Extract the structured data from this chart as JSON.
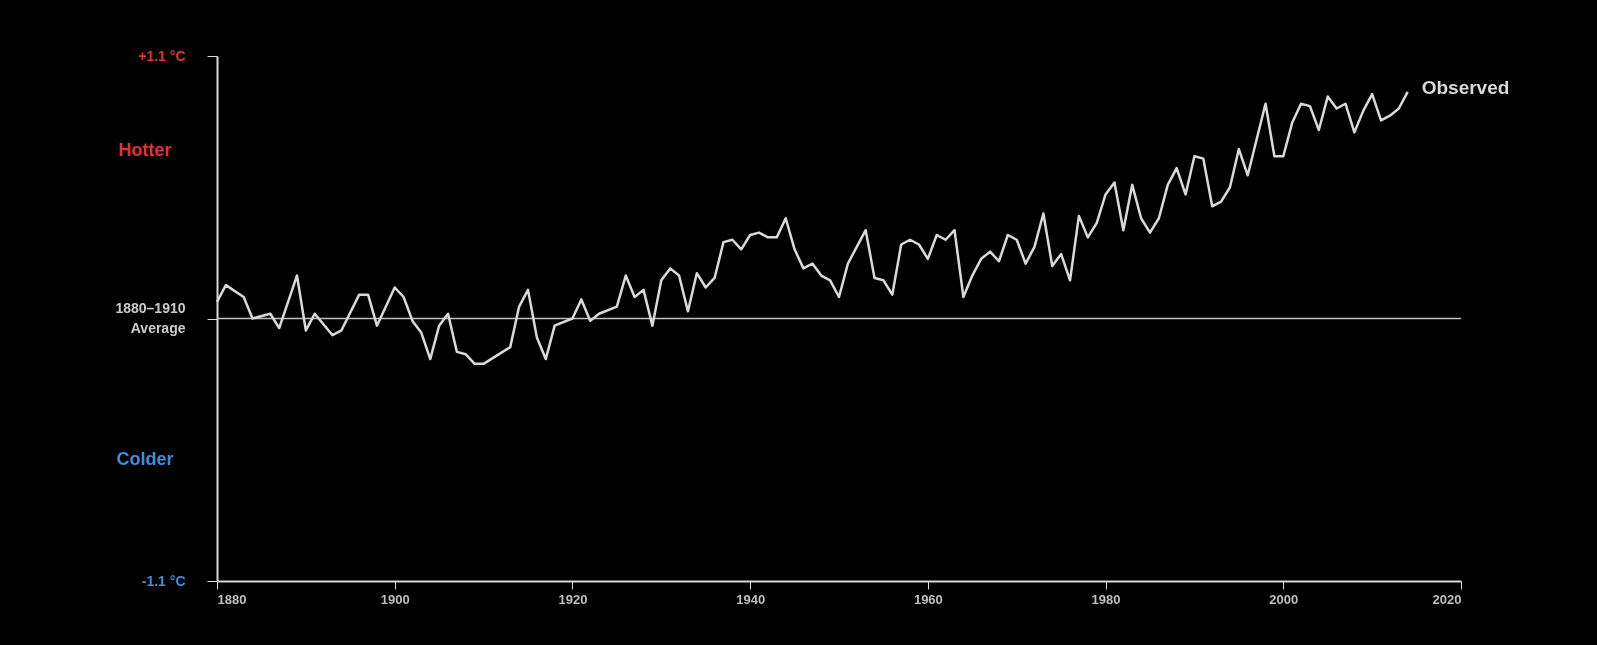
{
  "chart_data": {
    "type": "line",
    "x": [
      1880,
      1881,
      1883,
      1884,
      1886,
      1887,
      1889,
      1890,
      1891,
      1893,
      1894,
      1896,
      1897,
      1898,
      1900,
      1901,
      1902,
      1903,
      1904,
      1905,
      1906,
      1907,
      1908,
      1909,
      1910,
      1913,
      1914,
      1915,
      1916,
      1917,
      1918,
      1920,
      1921,
      1922,
      1923,
      1925,
      1926,
      1927,
      1928,
      1929,
      1930,
      1931,
      1932,
      1933,
      1934,
      1935,
      1936,
      1937,
      1938,
      1939,
      1940,
      1941,
      1942,
      1943,
      1944,
      1945,
      1946,
      1947,
      1948,
      1949,
      1950,
      1951,
      1952,
      1953,
      1954,
      1955,
      1956,
      1957,
      1958,
      1959,
      1960,
      1961,
      1962,
      1963,
      1964,
      1965,
      1966,
      1967,
      1968,
      1969,
      1970,
      1971,
      1972,
      1973,
      1974,
      1975,
      1976,
      1977,
      1978,
      1979,
      1980,
      1981,
      1982,
      1983,
      1984,
      1985,
      1986,
      1987,
      1988,
      1989,
      1990,
      1991,
      1992,
      1993,
      1994,
      1995,
      1996,
      1997,
      1998,
      1999,
      2000,
      2001,
      2002,
      2003,
      2004,
      2005,
      2006,
      2007,
      2008,
      2009,
      2010,
      2011,
      2012,
      2013,
      2014
    ],
    "series": [
      {
        "name": "Observed",
        "color": "#d9d9d9",
        "values": [
          0.07,
          0.14,
          0.09,
          0.0,
          0.02,
          -0.04,
          0.18,
          -0.05,
          0.02,
          -0.07,
          -0.05,
          0.1,
          0.1,
          -0.03,
          0.13,
          0.09,
          -0.01,
          -0.06,
          -0.17,
          -0.03,
          0.02,
          -0.14,
          -0.15,
          -0.19,
          -0.19,
          -0.12,
          0.05,
          0.12,
          -0.08,
          -0.17,
          -0.03,
          0.0,
          0.08,
          -0.01,
          0.02,
          0.05,
          0.18,
          0.09,
          0.12,
          -0.03,
          0.16,
          0.21,
          0.18,
          0.03,
          0.19,
          0.13,
          0.17,
          0.32,
          0.33,
          0.29,
          0.35,
          0.36,
          0.34,
          0.34,
          0.42,
          0.29,
          0.21,
          0.23,
          0.18,
          0.16,
          0.09,
          0.23,
          0.3,
          0.37,
          0.17,
          0.16,
          0.1,
          0.31,
          0.33,
          0.31,
          0.25,
          0.35,
          0.33,
          0.37,
          0.09,
          0.18,
          0.25,
          0.28,
          0.24,
          0.35,
          0.33,
          0.23,
          0.3,
          0.44,
          0.22,
          0.27,
          0.16,
          0.43,
          0.34,
          0.4,
          0.52,
          0.57,
          0.37,
          0.56,
          0.42,
          0.36,
          0.42,
          0.56,
          0.63,
          0.52,
          0.68,
          0.67,
          0.47,
          0.49,
          0.55,
          0.71,
          0.6,
          0.75,
          0.9,
          0.68,
          0.68,
          0.82,
          0.9,
          0.89,
          0.79,
          0.93,
          0.88,
          0.9,
          0.78,
          0.87,
          0.94,
          0.83,
          0.85,
          0.88,
          0.95
        ]
      }
    ],
    "xlim": [
      1880,
      2020
    ],
    "xticks": [
      1880,
      1900,
      1920,
      1940,
      1960,
      1980,
      2000,
      2020
    ],
    "ylim": [
      -1.1,
      1.1
    ],
    "yticks": [
      {
        "value": 1.1,
        "label": "+1.1 °C"
      },
      {
        "value": 0,
        "label": "1880–1910\nAverage"
      },
      {
        "value": -1.1,
        "label": "-1.1 °C"
      }
    ],
    "ref_lines": [
      {
        "axis": "y",
        "value": 0,
        "color": "#bfbfbf"
      }
    ],
    "annotations": [
      "Hotter",
      "Colder"
    ],
    "grid": false,
    "legend": false
  }
}
